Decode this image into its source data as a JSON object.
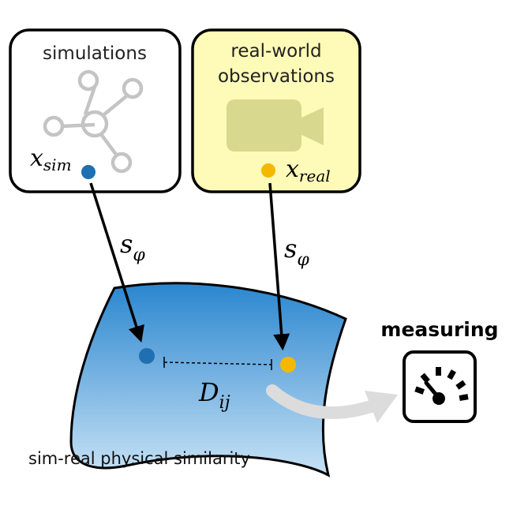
{
  "sim_box": {
    "title": "simulations",
    "var_main": "x",
    "var_sub": "sim"
  },
  "real_box": {
    "title_line1": "real-world",
    "title_line2": "observations",
    "var_main": "x",
    "var_sub": "real"
  },
  "arrow_left": {
    "main": "s",
    "sub": "φ"
  },
  "arrow_right": {
    "main": "s",
    "sub": "φ"
  },
  "distance": {
    "main": "D",
    "sub": "ij"
  },
  "surface": {
    "caption": "sim-real physical similarity"
  },
  "measuring": {
    "label": "measuring"
  },
  "icons": {
    "sim": "molecule-icon",
    "real": "video-camera-icon",
    "meter": "speedometer-gauge-icon"
  },
  "colors": {
    "sim_point": "#1f6fb2",
    "real_point": "#f5b800",
    "real_box_fill": "#fefbb8",
    "surface_top": "#2a86cf",
    "surface_bottom": "#c8e2f5"
  }
}
